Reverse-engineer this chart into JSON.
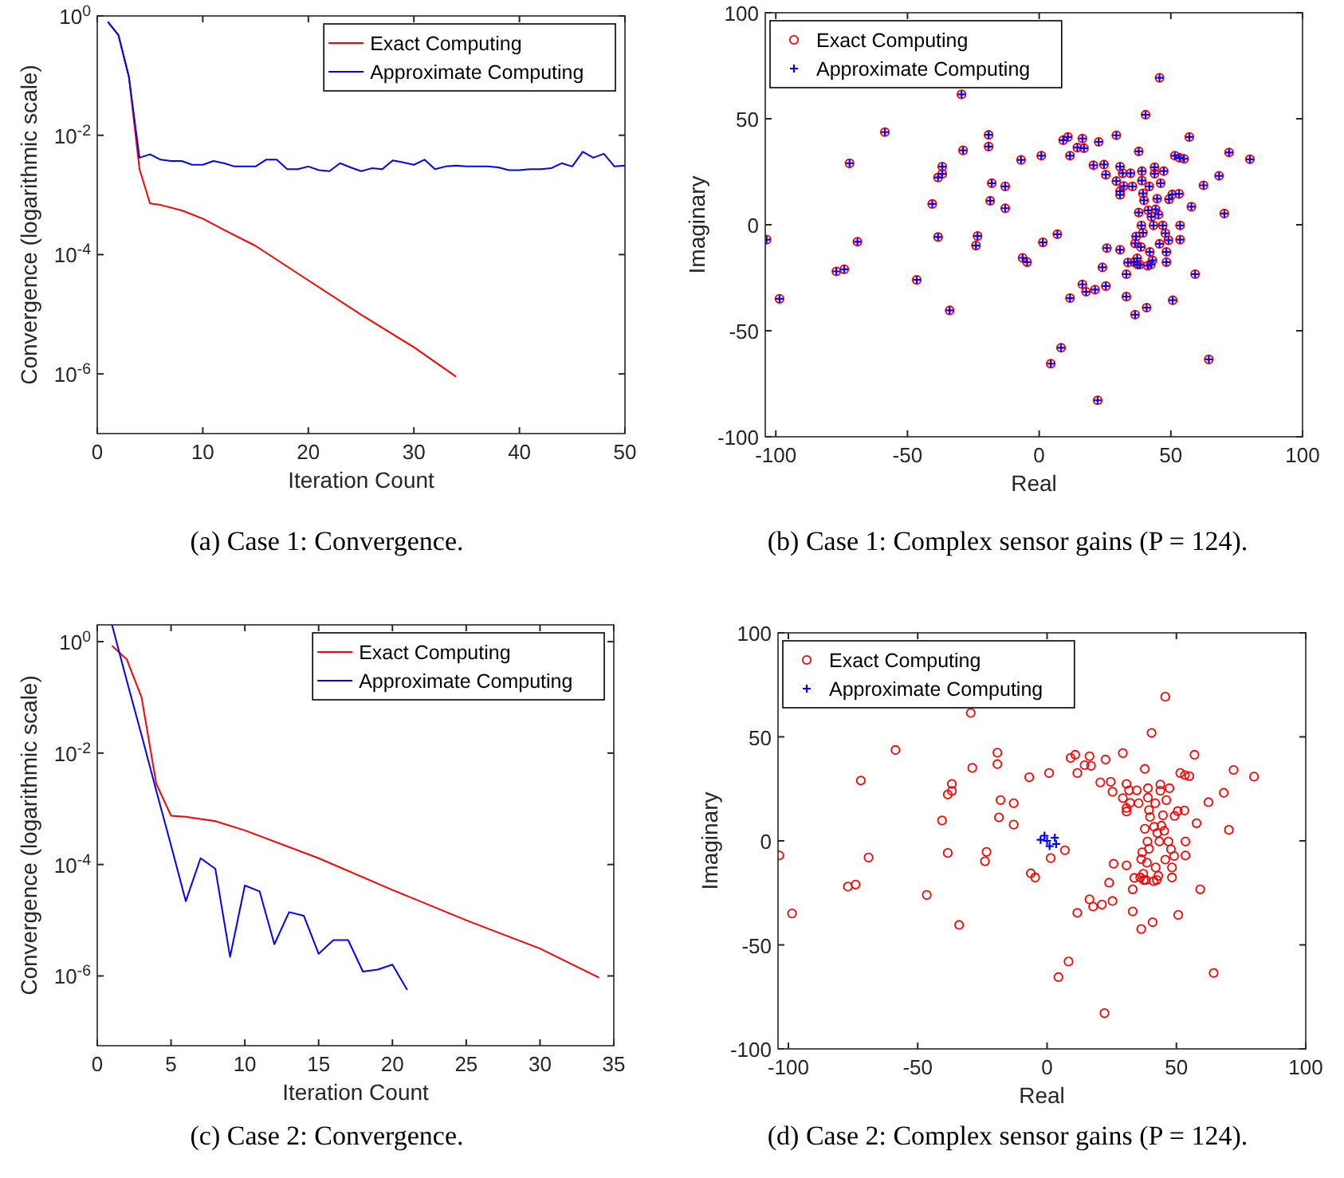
{
  "chart_data": [
    {
      "type": "line",
      "xlabel": "Iteration Count",
      "ylabel": "Convergence (logarithmic scale)",
      "log": true,
      "legend": "top right",
      "xlim": [
        0,
        50
      ],
      "xticks": [
        0,
        10,
        20,
        30,
        40,
        50
      ],
      "ylim": [
        1e-07,
        1
      ],
      "yticks": [
        {
          "value": 1,
          "label": "10$^{0}$"
        },
        {
          "value": 0.01,
          "label": "10$^{-2}$"
        },
        {
          "value": 0.0001,
          "label": "10$^{-4}$"
        },
        {
          "value": 1e-06,
          "label": "10$^{-6}$"
        }
      ],
      "annotations": [
        "(a) Case 1: Convergence."
      ],
      "series": [
        {
          "name": "Exact Computing",
          "color": "#ff0000",
          "x": [
            1,
            2,
            3,
            4,
            5,
            6,
            8,
            10,
            12,
            15,
            20,
            25,
            30,
            34
          ],
          "values": [
            0.8,
            0.48,
            0.095,
            0.0027,
            0.00072,
            0.00068,
            0.00055,
            0.0004,
            0.00026,
            0.00014,
            3.7e-05,
            9.8e-06,
            2.8e-06,
            9e-07
          ]
        },
        {
          "name": "Approximate Computing",
          "color": "#0000ff",
          "x": [
            1,
            2,
            3,
            4,
            5,
            6,
            7,
            8,
            9,
            10,
            11,
            12,
            13,
            14,
            15,
            16,
            17,
            18,
            19,
            20,
            21,
            22,
            23,
            24,
            25,
            26,
            27,
            28,
            29,
            30,
            31,
            32,
            33,
            34,
            35,
            36,
            37,
            38,
            39,
            40,
            41,
            42,
            43,
            44,
            45,
            46,
            47,
            48,
            49,
            50
          ],
          "values": [
            0.8,
            0.48,
            0.095,
            0.0042,
            0.0048,
            0.0039,
            0.0037,
            0.0037,
            0.0032,
            0.0032,
            0.0037,
            0.0034,
            0.003,
            0.003,
            0.003,
            0.0039,
            0.0039,
            0.0027,
            0.0027,
            0.003,
            0.0026,
            0.0025,
            0.0034,
            0.0029,
            0.0025,
            0.0028,
            0.0027,
            0.0038,
            0.0035,
            0.0032,
            0.0039,
            0.0027,
            0.003,
            0.0031,
            0.003,
            0.003,
            0.003,
            0.0029,
            0.0026,
            0.0026,
            0.0027,
            0.0027,
            0.0028,
            0.0034,
            0.003,
            0.0053,
            0.0042,
            0.0049,
            0.003,
            0.0031
          ]
        }
      ]
    },
    {
      "type": "scatter",
      "xlabel": "Real",
      "ylabel": "Imaginary",
      "legend": "top left",
      "xlim": [
        -104,
        100
      ],
      "xticks": [
        -100,
        -50,
        0,
        50,
        100
      ],
      "ylim": [
        -100,
        100
      ],
      "yticks": [
        -100,
        -50,
        0,
        50,
        100
      ],
      "annotations": [
        "(b) Case 1: Complex sensor gains (P = 124)."
      ],
      "series": [
        {
          "name": "Exact Computing",
          "color": "#ff0000",
          "marker": "circle",
          "x": [
            -103.5,
            -98.6,
            -77,
            -74,
            -72,
            -69,
            -58.6,
            -46.5,
            -40.6,
            -38.4,
            -38.4,
            -36.8,
            -36.8,
            -34,
            -29.5,
            -28.9,
            -24,
            -23.4,
            -19.2,
            -19.2,
            -18.6,
            -18,
            -12.9,
            -12.9,
            -6.9,
            -6.3,
            -4.6,
            0.8,
            1.4,
            4.4,
            6.9,
            8.3,
            9.1,
            10.9,
            11.7,
            11.7,
            14.5,
            16.4,
            17,
            16.4,
            17.8,
            21.2,
            20.6,
            22.6,
            22.2,
            24,
            24.6,
            25.3,
            25.3,
            25.7,
            29.3,
            29.3,
            30.7,
            30.7,
            30.7,
            30.7,
            31.7,
            32.1,
            33.1,
            33.1,
            33.7,
            34.7,
            35.4,
            36,
            36.4,
            36.4,
            36.8,
            37.2,
            37.4,
            37.8,
            37.8,
            38.2,
            38.6,
            38.8,
            39,
            39,
            39.4,
            39.4,
            39.8,
            40.4,
            40.8,
            41.2,
            41.4,
            41.8,
            42,
            42.4,
            42.6,
            43,
            43.4,
            43.8,
            43.8,
            44.2,
            44.8,
            45.3,
            45.7,
            45.7,
            46.1,
            46.9,
            47.3,
            47.9,
            48.3,
            48.3,
            49.1,
            49.3,
            50.5,
            50.7,
            51.5,
            53.1,
            53.5,
            53.5,
            53.3,
            55,
            57,
            57.8,
            59.2,
            62.4,
            64.4,
            68.3,
            70.3,
            72.1,
            80
          ],
          "values": [
            -7,
            -34.9,
            -22,
            -21,
            29,
            -8,
            43.7,
            -26,
            9.8,
            -5.8,
            22.3,
            27.4,
            24,
            -40.4,
            61.5,
            35.1,
            -9.8,
            -5.3,
            42.4,
            36.9,
            11.3,
            19.6,
            18.1,
            7.8,
            30.6,
            -15.6,
            -17.6,
            32.6,
            -8.3,
            -65.5,
            -4.5,
            -58,
            39.9,
            41.4,
            32.6,
            -34.6,
            36.4,
            40.7,
            36.1,
            -28.1,
            -31.6,
            -30.6,
            28.1,
            39.1,
            -82.8,
            -20.1,
            28.4,
            23.6,
            -28.9,
            -11,
            42.2,
            20.6,
            27.4,
            -11.8,
            14.1,
            15.8,
            24.3,
            18.3,
            -23.3,
            -33.9,
            -17.8,
            24.3,
            18.1,
            -17.6,
            -8.8,
            -42.4,
            -5.5,
            -15.8,
            -18.8,
            34.6,
            5.8,
            -18.8,
            -10.5,
            -0.3,
            25.3,
            20.8,
            14.8,
            -3.8,
            11.5,
            51.9,
            -39.1,
            -19.3,
            6.8,
            18.1,
            -12.8,
            -18.8,
            3.8,
            -16.8,
            -0.3,
            27.1,
            24.1,
            7.3,
            12.3,
            4.8,
            69.3,
            -9,
            19.6,
            -0.3,
            25.3,
            -4,
            -12.8,
            -17.6,
            -7.3,
            12,
            14.3,
            -35.6,
            32.6,
            14.6,
            -0.3,
            -7,
            31.6,
            31.1,
            41.4,
            8.5,
            -23.3,
            18.6,
            -63.5,
            23.1,
            5.3,
            34.1,
            30.9
          ]
        },
        {
          "name": "Approximate Computing",
          "color": "#0000ff",
          "marker": "cross",
          "x": [
            -103.5,
            -98.6,
            -77,
            -74,
            -72,
            -69,
            -58.6,
            -46.5,
            -40.6,
            -38.4,
            -38.4,
            -36.8,
            -36.8,
            -34,
            -29.5,
            -28.9,
            -24,
            -23.4,
            -19.2,
            -19.2,
            -18.6,
            -18,
            -12.9,
            -12.9,
            -6.9,
            -6.3,
            -4.6,
            0.8,
            1.4,
            4.4,
            6.9,
            8.3,
            9.1,
            10.9,
            11.7,
            11.7,
            14.5,
            16.4,
            17,
            16.4,
            17.8,
            21.2,
            20.6,
            22.6,
            22.2,
            24,
            24.6,
            25.3,
            25.3,
            25.7,
            29.3,
            29.3,
            30.7,
            30.7,
            30.7,
            30.7,
            31.7,
            32.1,
            33.1,
            33.1,
            33.7,
            34.7,
            35.4,
            36,
            36.4,
            36.4,
            36.8,
            37.2,
            37.4,
            37.8,
            37.8,
            38.2,
            38.6,
            38.8,
            39,
            39,
            39.4,
            39.4,
            39.8,
            40.4,
            40.8,
            41.2,
            41.4,
            41.8,
            42,
            42.4,
            42.6,
            43,
            43.4,
            43.8,
            43.8,
            44.2,
            44.8,
            45.3,
            45.7,
            45.7,
            46.1,
            46.9,
            47.3,
            47.9,
            48.3,
            48.3,
            49.1,
            49.3,
            50.5,
            50.7,
            51.5,
            53.1,
            53.5,
            53.5,
            53.3,
            55,
            57,
            57.8,
            59.2,
            62.4,
            64.4,
            68.3,
            70.3,
            72.1,
            80
          ],
          "values": [
            -7,
            -34.9,
            -22,
            -21,
            29,
            -8,
            43.7,
            -26,
            9.8,
            -5.8,
            22.3,
            27.4,
            24,
            -40.4,
            61.5,
            35.1,
            -9.8,
            -5.3,
            42.4,
            36.9,
            11.3,
            19.6,
            18.1,
            7.8,
            30.6,
            -15.6,
            -17.6,
            32.6,
            -8.3,
            -65.5,
            -4.5,
            -58,
            39.9,
            41.4,
            32.6,
            -34.6,
            36.4,
            40.7,
            36.1,
            -28.1,
            -31.6,
            -30.6,
            28.1,
            39.1,
            -82.8,
            -20.1,
            28.4,
            23.6,
            -28.9,
            -11,
            42.2,
            20.6,
            27.4,
            -11.8,
            14.1,
            15.8,
            24.3,
            18.3,
            -23.3,
            -33.9,
            -17.8,
            24.3,
            18.1,
            -17.6,
            -8.8,
            -42.4,
            -5.5,
            -15.8,
            -18.8,
            34.6,
            5.8,
            -18.8,
            -10.5,
            -0.3,
            25.3,
            20.8,
            14.8,
            -3.8,
            11.5,
            51.9,
            -39.1,
            -19.3,
            6.8,
            18.1,
            -12.8,
            -18.8,
            3.8,
            -16.8,
            -0.3,
            27.1,
            24.1,
            7.3,
            12.3,
            4.8,
            69.3,
            -9,
            19.6,
            -0.3,
            25.3,
            -4,
            -12.8,
            -17.6,
            -7.3,
            12,
            14.3,
            -35.6,
            32.6,
            14.6,
            -0.3,
            -7,
            31.6,
            31.1,
            41.4,
            8.5,
            -23.3,
            18.6,
            -63.5,
            23.1,
            5.3,
            34.1,
            30.9
          ]
        }
      ]
    },
    {
      "type": "line",
      "xlabel": "Iteration Count",
      "ylabel": "Convergence (logarithmic scale)",
      "log": true,
      "legend": "top right",
      "xlim": [
        0,
        35
      ],
      "xticks": [
        0,
        5,
        10,
        15,
        20,
        25,
        30,
        35
      ],
      "ylim": [
        5.6e-08,
        2
      ],
      "yticks": [
        {
          "value": 1,
          "label": "10$^{0}$"
        },
        {
          "value": 0.01,
          "label": "10$^{-2}$"
        },
        {
          "value": 0.0001,
          "label": "10$^{-4}$"
        },
        {
          "value": 1e-06,
          "label": "10$^{-6}$"
        }
      ],
      "annotations": [
        "(c) Case 2: Convergence."
      ],
      "series": [
        {
          "name": "Exact Computing",
          "color": "#ff0000",
          "x": [
            1,
            2,
            3,
            4,
            5,
            6,
            8,
            10,
            15,
            20,
            25,
            30,
            34
          ],
          "values": [
            0.84,
            0.48,
            0.1,
            0.0028,
            0.00075,
            0.00072,
            0.0006,
            0.00041,
            0.00013,
            3.5e-05,
            1e-05,
            3.1e-06,
            9.3e-07
          ]
        },
        {
          "name": "Approximate Computing",
          "color": "#0000ff",
          "x": [
            1,
            2,
            3,
            4,
            5,
            6,
            7,
            8,
            9,
            10,
            11,
            12,
            13,
            14,
            15,
            16,
            17,
            18,
            19,
            20,
            21
          ],
          "values": [
            2,
            0.2,
            0.021,
            0.0021,
            0.00022,
            2.2e-05,
            0.00013,
            8.4e-05,
            2.2e-06,
            4.2e-05,
            3.3e-05,
            3.7e-06,
            1.4e-05,
            1.2e-05,
            2.5e-06,
            4.4e-06,
            4.4e-06,
            1.2e-06,
            1.3e-06,
            1.6e-06,
            5.6e-07
          ]
        }
      ]
    },
    {
      "type": "scatter",
      "xlabel": "Real",
      "ylabel": "Imaginary",
      "legend": "top left",
      "xlim": [
        -104,
        100
      ],
      "xticks": [
        -100,
        -50,
        0,
        50,
        100
      ],
      "ylim": [
        -100,
        100
      ],
      "yticks": [
        -100,
        -50,
        0,
        50,
        100
      ],
      "annotations": [
        "(d) Case 2: Complex sensor gains (P = 124)."
      ],
      "series": [
        {
          "name": "Exact Computing",
          "color": "#ff0000",
          "marker": "circle",
          "x": [
            -103.5,
            -98.6,
            -77,
            -74,
            -72,
            -69,
            -58.6,
            -46.5,
            -40.6,
            -38.4,
            -38.4,
            -36.8,
            -36.8,
            -34,
            -29.5,
            -28.9,
            -24,
            -23.4,
            -19.2,
            -19.2,
            -18.6,
            -18,
            -12.9,
            -12.9,
            -6.9,
            -6.3,
            -4.6,
            0.8,
            1.4,
            4.4,
            6.9,
            8.3,
            9.1,
            10.9,
            11.7,
            11.7,
            14.5,
            16.4,
            17,
            16.4,
            17.8,
            21.2,
            20.6,
            22.6,
            22.2,
            24,
            24.6,
            25.3,
            25.3,
            25.7,
            29.3,
            29.3,
            30.7,
            30.7,
            30.7,
            30.7,
            31.7,
            32.1,
            33.1,
            33.1,
            33.7,
            34.7,
            35.4,
            36,
            36.4,
            36.4,
            36.8,
            37.2,
            37.4,
            37.8,
            37.8,
            38.2,
            38.6,
            38.8,
            39,
            39,
            39.4,
            39.4,
            39.8,
            40.4,
            40.8,
            41.2,
            41.4,
            41.8,
            42,
            42.4,
            42.6,
            43,
            43.4,
            43.8,
            43.8,
            44.2,
            44.8,
            45.3,
            45.7,
            45.7,
            46.1,
            46.9,
            47.3,
            47.9,
            48.3,
            48.3,
            49.1,
            49.3,
            50.5,
            50.7,
            51.5,
            53.1,
            53.5,
            53.5,
            53.3,
            55,
            57,
            57.8,
            59.2,
            62.4,
            64.4,
            68.3,
            70.3,
            72.1,
            80
          ],
          "values": [
            -7,
            -34.9,
            -22,
            -21,
            29,
            -8,
            43.7,
            -26,
            9.8,
            -5.8,
            22.3,
            27.4,
            24,
            -40.4,
            61.5,
            35.1,
            -9.8,
            -5.3,
            42.4,
            36.9,
            11.3,
            19.6,
            18.1,
            7.8,
            30.6,
            -15.6,
            -17.6,
            32.6,
            -8.3,
            -65.5,
            -4.5,
            -58,
            39.9,
            41.4,
            32.6,
            -34.6,
            36.4,
            40.7,
            36.1,
            -28.1,
            -31.6,
            -30.6,
            28.1,
            39.1,
            -82.8,
            -20.1,
            28.4,
            23.6,
            -28.9,
            -11,
            42.2,
            20.6,
            27.4,
            -11.8,
            14.1,
            15.8,
            24.3,
            18.3,
            -23.3,
            -33.9,
            -17.8,
            24.3,
            18.1,
            -17.6,
            -8.8,
            -42.4,
            -5.5,
            -15.8,
            -18.8,
            34.6,
            5.8,
            -18.8,
            -10.5,
            -0.3,
            25.3,
            20.8,
            14.8,
            -3.8,
            11.5,
            51.9,
            -39.1,
            -19.3,
            6.8,
            18.1,
            -12.8,
            -18.8,
            3.8,
            -16.8,
            -0.3,
            27.1,
            24.1,
            7.3,
            12.3,
            4.8,
            69.3,
            -9,
            19.6,
            -0.3,
            25.3,
            -4,
            -12.8,
            -17.6,
            -7.3,
            12,
            14.3,
            -35.6,
            32.6,
            14.6,
            -0.3,
            -7,
            31.6,
            31.1,
            41.4,
            8.5,
            -23.3,
            18.6,
            -63.5,
            23.1,
            5.3,
            34.1,
            30.9
          ]
        },
        {
          "name": "Approximate Computing",
          "color": "#0000ff",
          "marker": "cross",
          "x": [
            0,
            3,
            -2.5,
            1,
            -1,
            3.5
          ],
          "values": [
            0,
            1.5,
            0.5,
            -2.5,
            2.5,
            -1.5
          ]
        }
      ]
    }
  ]
}
